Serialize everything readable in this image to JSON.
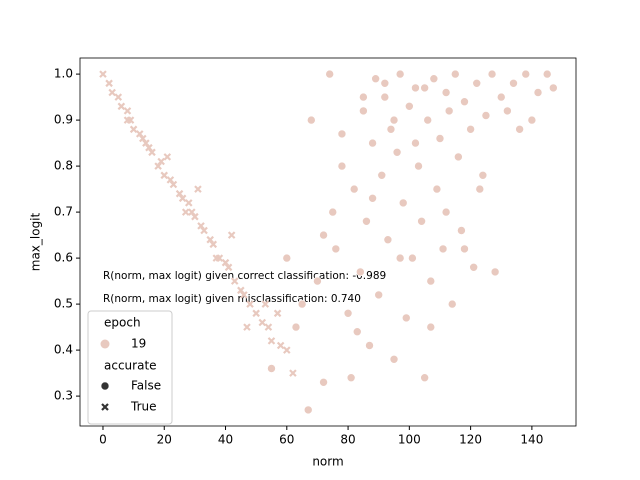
{
  "chart_data": {
    "type": "scatter",
    "xlabel": "norm",
    "ylabel": "max_logit",
    "xlim": [
      -7.5,
      154.4
    ],
    "ylim": [
      0.235,
      1.035
    ],
    "xticks": [
      0,
      20,
      40,
      60,
      80,
      100,
      120,
      140
    ],
    "yticks": [
      0.3,
      0.4,
      0.5,
      0.6,
      0.7,
      0.8,
      0.9,
      {
        "value": 1,
        "label": "1.0"
      }
    ],
    "color": "#e8c9bf",
    "annotations": [
      "R(norm, max logit) given correct classification: -0.989",
      "R(norm, max logit) given misclassification: 0.740"
    ],
    "hue_title": "epoch",
    "hue_labels": [
      "19"
    ],
    "style_title": "accurate",
    "series": [
      {
        "name": "False",
        "marker": "circle",
        "x": [
          55,
          60,
          63,
          65,
          67,
          68,
          70,
          72,
          74,
          75,
          76,
          78,
          80,
          81,
          82,
          84,
          85,
          86,
          87,
          88,
          89,
          90,
          91,
          92,
          93,
          94,
          95,
          96,
          97,
          98,
          99,
          100,
          101,
          102,
          103,
          104,
          105,
          106,
          107,
          108,
          109,
          110,
          111,
          112,
          113,
          114,
          115,
          116,
          117,
          118,
          120,
          121,
          122,
          124,
          125,
          127,
          128,
          130,
          132,
          134,
          136,
          138,
          140,
          142,
          145,
          147,
          72,
          78,
          83,
          88,
          92,
          97,
          102,
          107,
          112,
          118,
          123,
          85,
          95,
          105
        ],
        "y": [
          0.36,
          0.6,
          0.45,
          0.5,
          0.27,
          0.9,
          0.55,
          0.33,
          1.0,
          0.7,
          0.62,
          0.8,
          0.48,
          0.34,
          0.75,
          0.57,
          0.92,
          0.68,
          0.41,
          0.85,
          0.99,
          0.52,
          0.78,
          0.95,
          0.64,
          0.88,
          0.38,
          0.83,
          1.0,
          0.72,
          0.47,
          0.93,
          0.6,
          0.97,
          0.8,
          0.68,
          0.34,
          0.9,
          0.55,
          0.99,
          0.75,
          0.86,
          0.62,
          0.96,
          0.92,
          0.5,
          1.0,
          0.82,
          0.66,
          0.94,
          0.88,
          0.58,
          0.98,
          0.78,
          0.91,
          1.0,
          0.57,
          0.95,
          0.92,
          0.98,
          0.88,
          1.0,
          0.9,
          0.96,
          1.0,
          0.97,
          0.65,
          0.87,
          0.44,
          0.73,
          0.98,
          0.6,
          0.85,
          0.45,
          0.7,
          0.62,
          0.75,
          0.95,
          0.9,
          0.97
        ]
      },
      {
        "name": "True",
        "marker": "x",
        "x": [
          0,
          2,
          3,
          5,
          6,
          8,
          9,
          10,
          12,
          13,
          15,
          16,
          18,
          19,
          20,
          22,
          23,
          25,
          26,
          28,
          29,
          30,
          32,
          33,
          35,
          36,
          38,
          40,
          41,
          43,
          45,
          46,
          48,
          50,
          52,
          54,
          55,
          58,
          60,
          62,
          8,
          14,
          21,
          27,
          31,
          37,
          42,
          47,
          53,
          57
        ],
        "y": [
          1.0,
          0.98,
          0.96,
          0.95,
          0.93,
          0.92,
          0.9,
          0.88,
          0.87,
          0.86,
          0.84,
          0.83,
          0.8,
          0.81,
          0.78,
          0.77,
          0.76,
          0.74,
          0.73,
          0.72,
          0.7,
          0.69,
          0.67,
          0.66,
          0.64,
          0.63,
          0.6,
          0.59,
          0.58,
          0.55,
          0.53,
          0.52,
          0.5,
          0.48,
          0.46,
          0.45,
          0.42,
          0.41,
          0.4,
          0.35,
          0.9,
          0.85,
          0.82,
          0.7,
          0.75,
          0.6,
          0.65,
          0.45,
          0.5,
          0.48
        ]
      }
    ]
  }
}
